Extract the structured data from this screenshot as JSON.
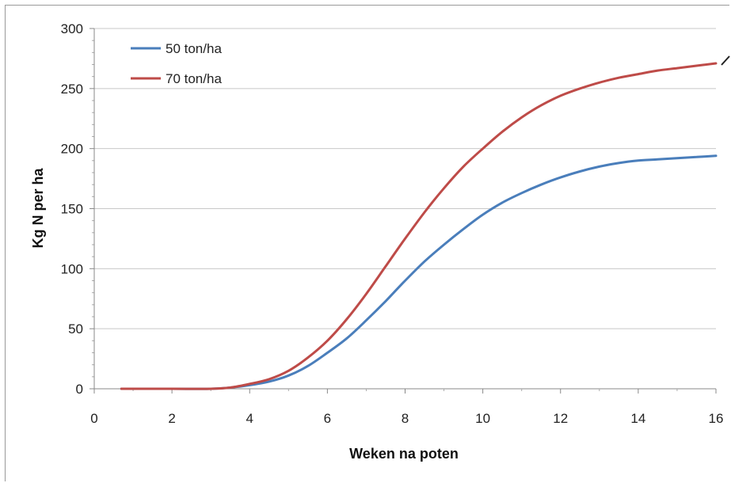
{
  "chart_data": {
    "type": "line",
    "title": "",
    "xlabel": "Weken na poten",
    "ylabel": "Kg N per ha",
    "xlim": [
      0,
      16
    ],
    "ylim": [
      0,
      300
    ],
    "x_ticks": [
      0,
      2,
      4,
      6,
      8,
      10,
      12,
      14,
      16
    ],
    "y_ticks": [
      0,
      50,
      100,
      150,
      200,
      250,
      300
    ],
    "grid": "horizontal",
    "legend_position": "top-left",
    "series": [
      {
        "name": "50 ton/ha",
        "color": "#4a7ebb",
        "x": [
          0.7,
          1,
          2,
          3,
          3.5,
          4,
          4.5,
          5,
          5.5,
          6,
          6.5,
          7,
          7.5,
          8,
          8.5,
          9,
          9.5,
          10,
          10.5,
          11,
          11.5,
          12,
          12.5,
          13,
          13.5,
          14,
          14.5,
          15,
          15.5,
          16
        ],
        "values": [
          0,
          0,
          0,
          0,
          1,
          3,
          6,
          11,
          19,
          30,
          42,
          57,
          73,
          90,
          106,
          120,
          133,
          145,
          155,
          163,
          170,
          176,
          181,
          185,
          188,
          190,
          191,
          192,
          193,
          194
        ]
      },
      {
        "name": "70 ton/ha",
        "color": "#be4b48",
        "x": [
          0.7,
          1,
          2,
          3,
          3.5,
          4,
          4.5,
          5,
          5.5,
          6,
          6.5,
          7,
          7.5,
          8,
          8.5,
          9,
          9.5,
          10,
          10.5,
          11,
          11.5,
          12,
          12.5,
          13,
          13.5,
          14,
          14.5,
          15,
          15.5,
          16
        ],
        "values": [
          0,
          0,
          0,
          0,
          1,
          4,
          8,
          15,
          26,
          40,
          58,
          79,
          102,
          125,
          147,
          167,
          185,
          200,
          214,
          226,
          236,
          244,
          250,
          255,
          259,
          262,
          265,
          267,
          269,
          271
        ]
      }
    ]
  },
  "annotation": {
    "color": "#222222"
  }
}
